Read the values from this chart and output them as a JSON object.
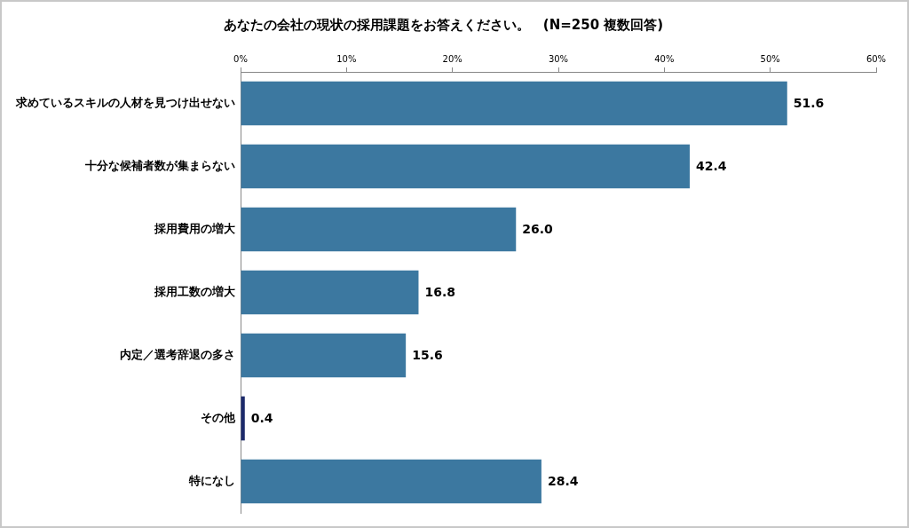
{
  "chart_data": {
    "type": "bar",
    "orientation": "horizontal",
    "title": "あなたの会社の現状の採用課題をお答えください。　(N=250 複数回答)",
    "categories": [
      "求めているスキルの人材を見つけ出せない",
      "十分な候補者数が集まらない",
      "採用費用の増大",
      "採用工数の増大",
      "内定／選考辞退の多さ",
      "その他",
      "特になし"
    ],
    "values": [
      51.6,
      42.4,
      26.0,
      16.8,
      15.6,
      0.4,
      28.4
    ],
    "value_labels": [
      "51.6",
      "42.4",
      "26.0",
      "16.8",
      "15.6",
      "0.4",
      "28.4"
    ],
    "colors": [
      "#3c78a0",
      "#3c78a0",
      "#3c78a0",
      "#3c78a0",
      "#3c78a0",
      "#1c2a6b",
      "#3c78a0"
    ],
    "xlim": [
      0,
      60
    ],
    "xticks": [
      {
        "value": 0,
        "label": "0%"
      },
      {
        "value": 10,
        "label": "10%"
      },
      {
        "value": 20,
        "label": "20%"
      },
      {
        "value": 30,
        "label": "30%"
      },
      {
        "value": 40,
        "label": "40%"
      },
      {
        "value": 50,
        "label": "50%"
      },
      {
        "value": 60,
        "label": "60%"
      }
    ],
    "grid": false,
    "legend": false
  }
}
